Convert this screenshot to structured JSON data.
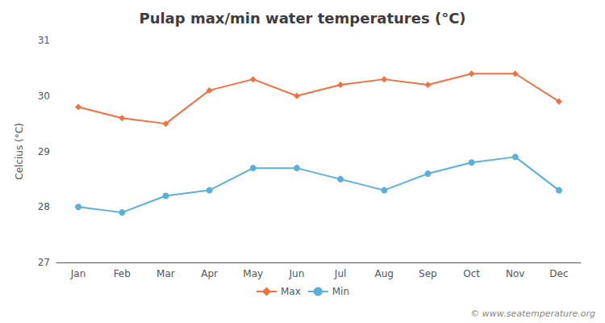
{
  "chart_data": {
    "type": "line",
    "title": "Pulap max/min water temperatures (°C)",
    "ylabel": "Celcius (°C)",
    "categories": [
      "Jan",
      "Feb",
      "Mar",
      "Apr",
      "May",
      "Jun",
      "Jul",
      "Aug",
      "Sep",
      "Oct",
      "Nov",
      "Dec"
    ],
    "series": [
      {
        "name": "Max",
        "color": "#f07040",
        "marker": "diamond",
        "values": [
          29.8,
          29.6,
          29.5,
          30.1,
          30.3,
          30.0,
          30.2,
          30.3,
          30.2,
          30.4,
          30.4,
          29.9
        ]
      },
      {
        "name": "Min",
        "color": "#5ab0d8",
        "marker": "circle",
        "values": [
          28.0,
          27.9,
          28.2,
          28.3,
          28.7,
          28.7,
          28.5,
          28.3,
          28.6,
          28.8,
          28.9,
          28.3
        ]
      }
    ],
    "ylim": [
      27,
      31
    ],
    "yticks": [
      27,
      28,
      29,
      30,
      31
    ],
    "grid": false,
    "legend": "bottom",
    "annotations": [
      "© www.seatemperature.org"
    ]
  }
}
